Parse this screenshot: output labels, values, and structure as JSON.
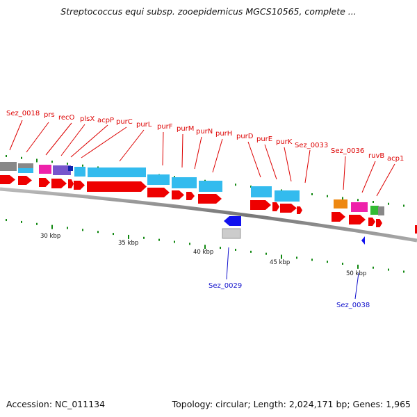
{
  "title": "Streptococcus equi subsp. zooepidemicus MGCS10565, complete ...",
  "footer": {
    "accession": "Accession: NC_011134",
    "summary": "Topology: circular; Length: 2,024,171 bp; Genes: 1,965"
  },
  "colors": {
    "cds": "#ee0000",
    "gene_blue": "#33bbee",
    "grey": "#888888",
    "magenta": "#ee22aa",
    "purple": "#7755cc",
    "orange": "#ee8811",
    "green": "#33bb33",
    "reverse_cds": "#1111ee",
    "label_forward": "#dd0000",
    "label_reverse": "#1010cc",
    "tick_green": "#118811"
  },
  "backbone_labels": [
    "30 kbp",
    "35 kbp",
    "40 kbp",
    "45 kbp",
    "50 kbp"
  ],
  "forward_labels": [
    "Sez_0018",
    "prs",
    "recO",
    "plsX",
    "acpP",
    "purC",
    "purL",
    "purF",
    "purM",
    "purN",
    "purH",
    "purD",
    "purE",
    "purK",
    "Sez_0033",
    "Sez_0036",
    "ruvB",
    "acp1"
  ],
  "reverse_labels": [
    "Sez_0029",
    "Sez_0038"
  ]
}
